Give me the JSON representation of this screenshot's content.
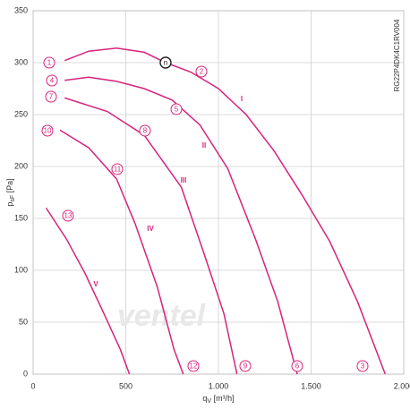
{
  "chart_data": {
    "type": "line",
    "side_text": "RG22P4DK4C1RV004",
    "ylabel": {
      "main": "p",
      "sub": "sF",
      "unit": " [Pa]"
    },
    "xlabel": {
      "main": "q",
      "sub": "V",
      "unit": " [m³/h]"
    },
    "watermark": "ventel",
    "xlim": [
      0,
      2000
    ],
    "xticks": [
      0,
      500,
      {
        "value": 1000,
        "label": "1.000"
      },
      {
        "value": 1500,
        "label": "1.500"
      },
      {
        "value": 2000,
        "label": "2.000"
      }
    ],
    "ylim": [
      0,
      350
    ],
    "yticks": [
      0,
      50,
      100,
      150,
      200,
      250,
      300,
      350
    ],
    "grid": true,
    "color": "#d6247c",
    "series": [
      {
        "name": "I",
        "x": [
          170,
          300,
          450,
          600,
          715,
          850,
          1000,
          1150,
          1300,
          1450,
          1600,
          1750,
          1900
        ],
        "values": [
          302,
          311,
          314,
          310,
          300,
          291,
          275,
          250,
          215,
          173,
          128,
          70,
          0
        ]
      },
      {
        "name": "II",
        "x": [
          170,
          300,
          450,
          600,
          750,
          900,
          1050,
          1200,
          1320,
          1425
        ],
        "values": [
          283,
          286,
          282,
          275,
          264,
          240,
          198,
          130,
          70,
          0
        ]
      },
      {
        "name": "III",
        "x": [
          170,
          400,
          600,
          700,
          800,
          930,
          1030,
          1100
        ],
        "values": [
          266,
          253,
          230,
          205,
          180,
          112,
          58,
          0
        ]
      },
      {
        "name": "IV",
        "x": [
          145,
          300,
          450,
          550,
          670,
          760,
          810
        ],
        "values": [
          235,
          218,
          188,
          145,
          84,
          24,
          0
        ]
      },
      {
        "name": "V",
        "x": [
          70,
          180,
          280,
          380,
          470,
          520
        ],
        "values": [
          160,
          130,
          97,
          59,
          24,
          0
        ]
      }
    ],
    "annotations": [
      "1",
      "2",
      "3",
      "4",
      "5",
      "6",
      "7",
      "8",
      "9",
      "10",
      "11",
      "12",
      "13",
      "n"
    ]
  }
}
